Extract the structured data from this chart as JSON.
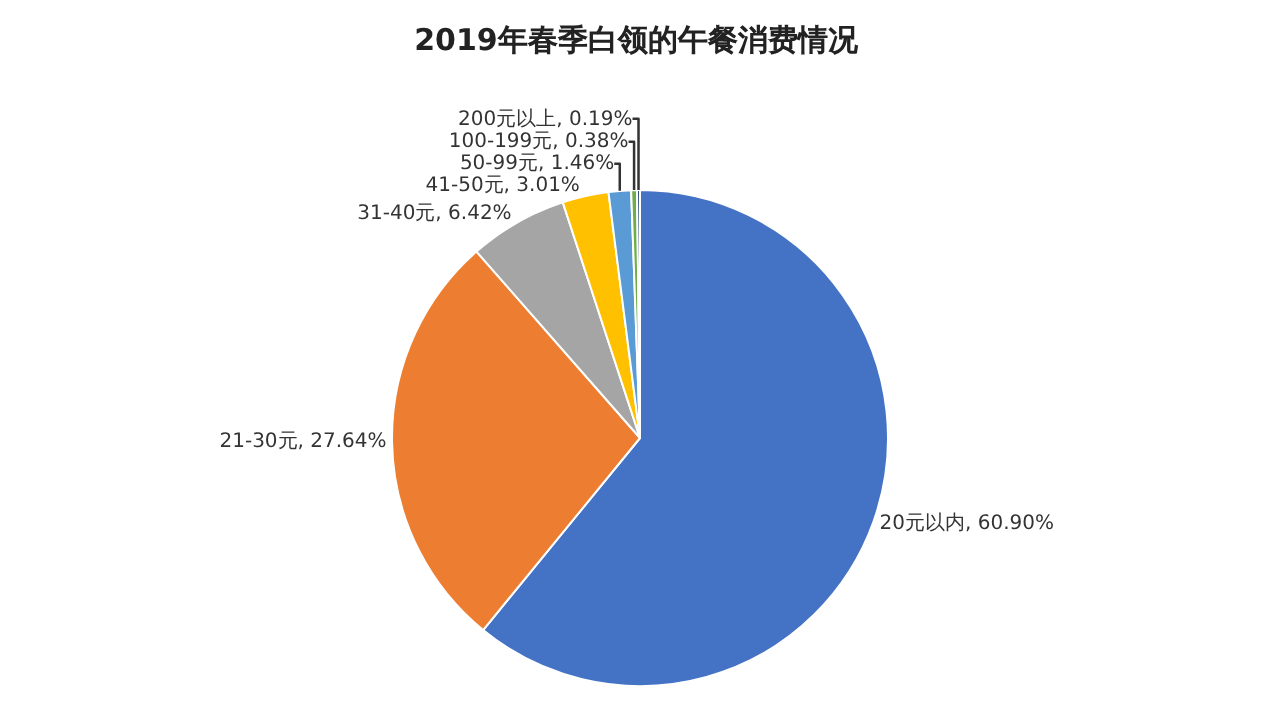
{
  "chart_data": {
    "type": "pie",
    "title": "2019年春季白领的午餐消费情况",
    "categories": [
      "20元以内",
      "21-30元",
      "31-40元",
      "41-50元",
      "50-99元",
      "100-199元",
      "200元以上"
    ],
    "values": [
      60.9,
      27.64,
      6.42,
      3.01,
      1.46,
      0.38,
      0.19
    ],
    "value_labels": [
      "60.90%",
      "27.64%",
      "6.42%",
      "3.01%",
      "1.46%",
      "0.38%",
      "0.19%"
    ],
    "colors": [
      "#4472c4",
      "#ed7d31",
      "#a5a5a5",
      "#ffc000",
      "#5b9bd5",
      "#70ad47",
      "#264478"
    ],
    "legend": false
  }
}
